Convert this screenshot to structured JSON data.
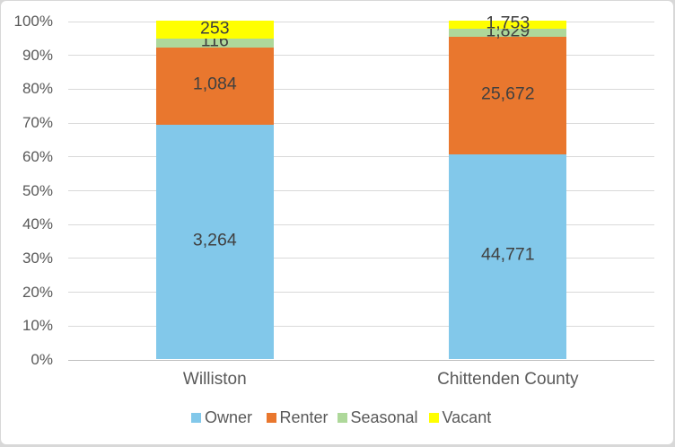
{
  "chart_data": {
    "type": "bar",
    "subtype": "stacked-100-percent",
    "title": "",
    "xlabel": "",
    "ylabel": "",
    "categories": [
      "Williston",
      "Chittenden County"
    ],
    "series": [
      {
        "name": "Owner",
        "color": "#82c8ea",
        "values": [
          3264,
          44771
        ],
        "labels": [
          "3,264",
          "44,771"
        ]
      },
      {
        "name": "Renter",
        "color": "#e9772e",
        "values": [
          1084,
          25672
        ],
        "labels": [
          "1,084",
          "25,672"
        ]
      },
      {
        "name": "Seasonal",
        "color": "#aed89a",
        "values": [
          116,
          1829
        ],
        "labels": [
          "116",
          "1,829"
        ]
      },
      {
        "name": "Vacant",
        "color": "#ffff00",
        "values": [
          253,
          1753
        ],
        "labels": [
          "253",
          "1,753"
        ]
      }
    ],
    "y_axis": {
      "min": 0,
      "max": 100,
      "tick_step": 10,
      "tick_labels": [
        "0%",
        "10%",
        "20%",
        "30%",
        "40%",
        "50%",
        "60%",
        "70%",
        "80%",
        "90%",
        "100%"
      ]
    },
    "grid": "horizontal",
    "legend_position": "bottom",
    "legend_entries": [
      "Owner",
      "Renter",
      "Seasonal",
      "Vacant"
    ],
    "colors": {
      "gridline": "#d9d9d9",
      "axis_line": "#bfbfbf",
      "data_label_text": "#404040",
      "axis_text": "#595959",
      "chart_border": "#d8d8d8",
      "background": "#ffffff"
    }
  }
}
